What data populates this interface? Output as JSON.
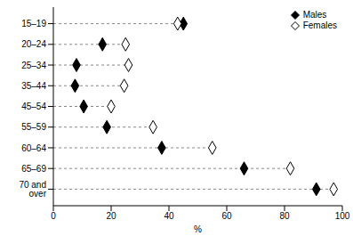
{
  "chart_data": {
    "type": "dot",
    "orientation": "horizontal",
    "categories": [
      "15–19",
      "20–24",
      "25–34",
      "35–44",
      "45–54",
      "55–59",
      "60–64",
      "65–69",
      "70 and over"
    ],
    "series": [
      {
        "name": "Males",
        "color": "#000000",
        "marker": "diamond",
        "values": [
          45,
          17,
          8,
          7.5,
          10.5,
          18.5,
          37.5,
          66,
          91
        ]
      },
      {
        "name": "Females",
        "color": "#000000",
        "marker": "open-diamond",
        "values": [
          43,
          25,
          26,
          24.5,
          20,
          34.5,
          55,
          82,
          97
        ]
      }
    ],
    "xlim": [
      0,
      100
    ],
    "xticks": [
      0,
      20,
      40,
      60,
      80,
      100
    ],
    "x_label": "%",
    "legend": "top-right"
  }
}
